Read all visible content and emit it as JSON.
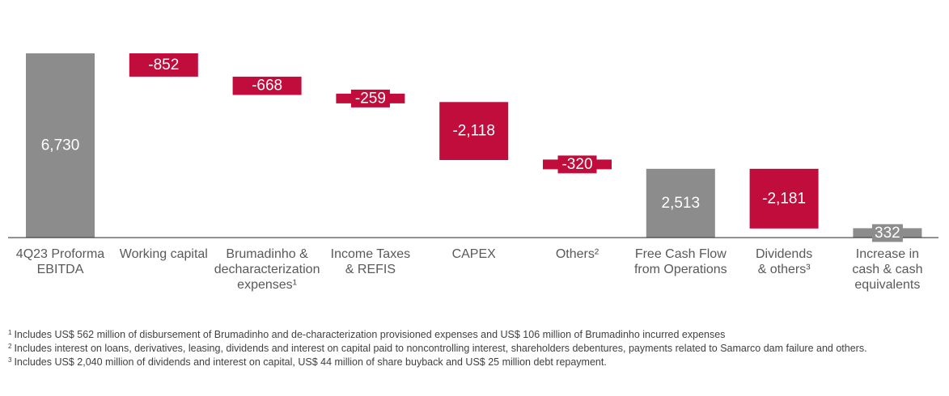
{
  "chart_data": {
    "type": "bar",
    "subtype": "waterfall",
    "categories": [
      "4Q23 Proforma\nEBITDA",
      "Working capital",
      "Brumadinho &\ndecharacterization\nexpenses¹",
      "Income Taxes\n& REFIS",
      "CAPEX",
      "Others²",
      "Free Cash Flow\nfrom Operations",
      "Dividends\n& others³",
      "Increase in\ncash & cash\nequivalents"
    ],
    "values": [
      6730,
      -852,
      -668,
      -259,
      -2118,
      -320,
      2513,
      -2181,
      332
    ],
    "value_labels": [
      "6,730",
      "-852",
      "-668",
      "-259",
      "-2,118",
      "-320",
      "2,513",
      "-2,181",
      "332"
    ],
    "bar_kinds": [
      "total",
      "delta",
      "delta",
      "delta",
      "delta",
      "delta",
      "total",
      "delta",
      "total"
    ],
    "ylim": [
      0,
      6730
    ],
    "title": "",
    "xlabel": "",
    "ylabel": "",
    "grid": false,
    "colors": {
      "total": "#8c8c8c",
      "delta": "#c00d3c",
      "label": "#ffffff",
      "axis": "#262626",
      "category": "#595959"
    }
  },
  "footnotes": [
    {
      "mark": "1",
      "text": "Includes US$ 562 million of disbursement of Brumadinho and de-characterization provisioned expenses and US$ 106 million of Brumadinho incurred expenses"
    },
    {
      "mark": "2",
      "text": "Includes interest on loans, derivatives, leasing, dividends and interest on capital paid to noncontrolling interest, shareholders debentures, payments related to Samarco dam failure and others."
    },
    {
      "mark": "3",
      "text": "Includes US$ 2,040 million of dividends and interest on capital, US$ 44 million of share buyback and US$ 25 million debt repayment."
    }
  ]
}
